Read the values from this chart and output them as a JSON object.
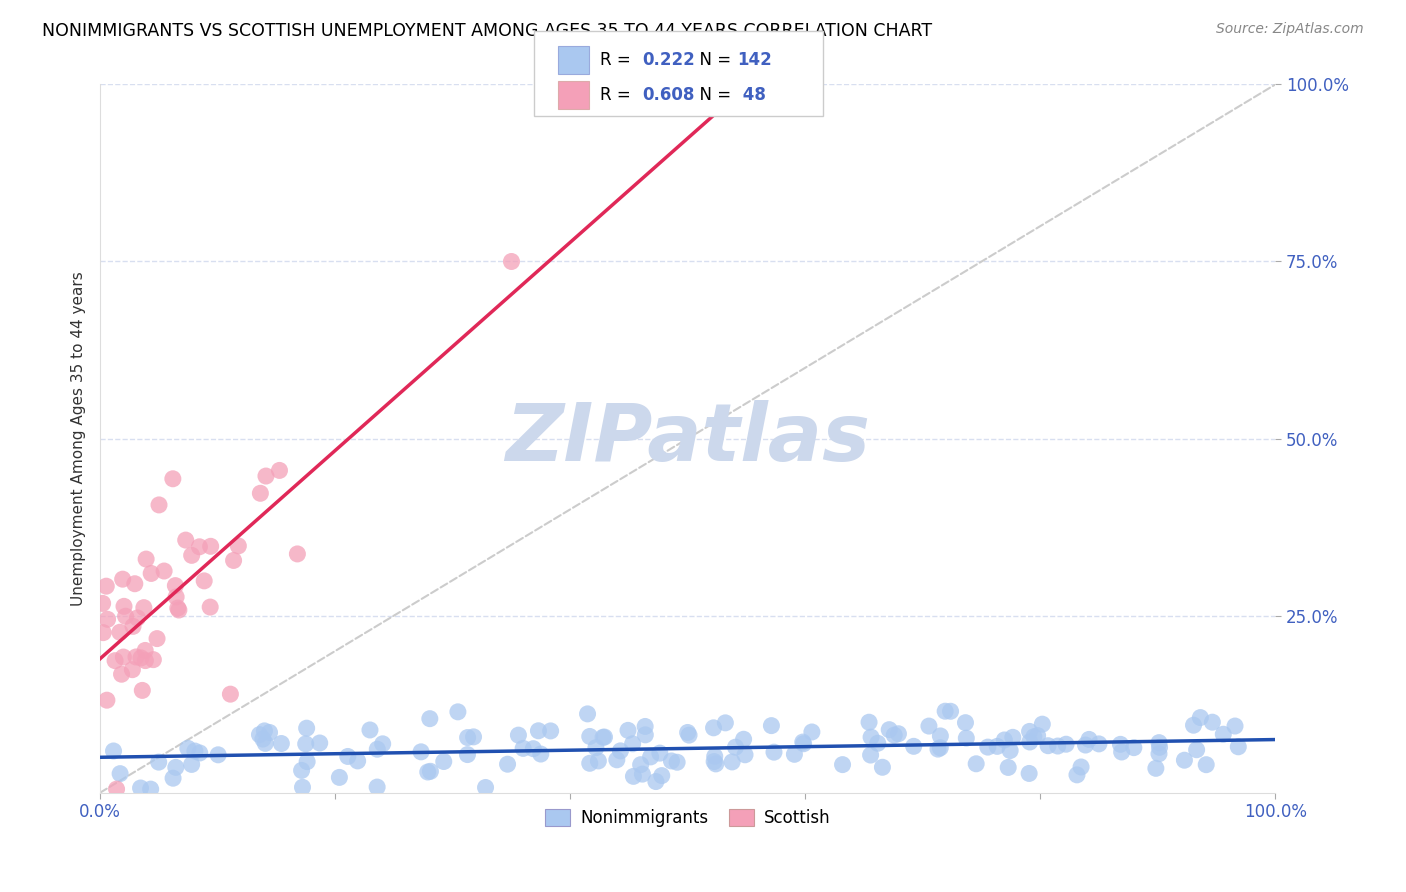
{
  "title": "NONIMMIGRANTS VS SCOTTISH UNEMPLOYMENT AMONG AGES 35 TO 44 YEARS CORRELATION CHART",
  "source": "Source: ZipAtlas.com",
  "ylabel": "Unemployment Among Ages 35 to 44 years",
  "xlim": [
    0.0,
    1.0
  ],
  "ylim": [
    0.0,
    1.0
  ],
  "nonimmigrant_R": 0.222,
  "nonimmigrant_N": 142,
  "scottish_R": 0.608,
  "scottish_N": 48,
  "scatter_blue": "#aac8f0",
  "scatter_pink": "#f4a0b8",
  "line_blue": "#2050b0",
  "line_pink": "#e02858",
  "line_diag_color": "#cccccc",
  "watermark_color": "#ccd8ec",
  "legend_label_nonimmigrants": "Nonimmigrants",
  "legend_label_scottish": "Scottish",
  "title_fontsize": 12.5,
  "axis_color": "#4060c0",
  "seed": 7
}
